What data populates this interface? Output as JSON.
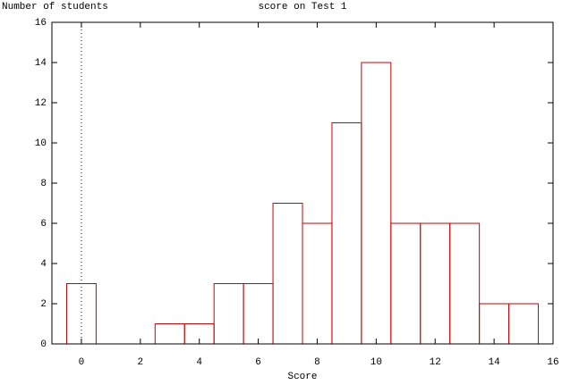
{
  "chart_data": {
    "type": "histogram",
    "title": "score on Test 1",
    "ylabel": "Number of students",
    "xlabel": "Score",
    "bins": [
      -0.5,
      0.5,
      1.5,
      2.5,
      3.5,
      4.5,
      5.5,
      6.5,
      7.5,
      8.5,
      9.5,
      10.5,
      11.5,
      12.5,
      13.5,
      14.5,
      15.5
    ],
    "values": [
      3,
      0,
      0,
      1,
      1,
      3,
      3,
      7,
      6,
      11,
      14,
      6,
      6,
      6,
      2,
      2
    ],
    "color": "#cc0000",
    "xlim": [
      -1,
      16
    ],
    "xticks": [
      0,
      2,
      4,
      6,
      8,
      10,
      12,
      14,
      16
    ],
    "ylim": [
      0,
      16
    ],
    "yticks": [
      0,
      2,
      4,
      6,
      8,
      10,
      12,
      14,
      16
    ],
    "zeroaxis": true
  }
}
